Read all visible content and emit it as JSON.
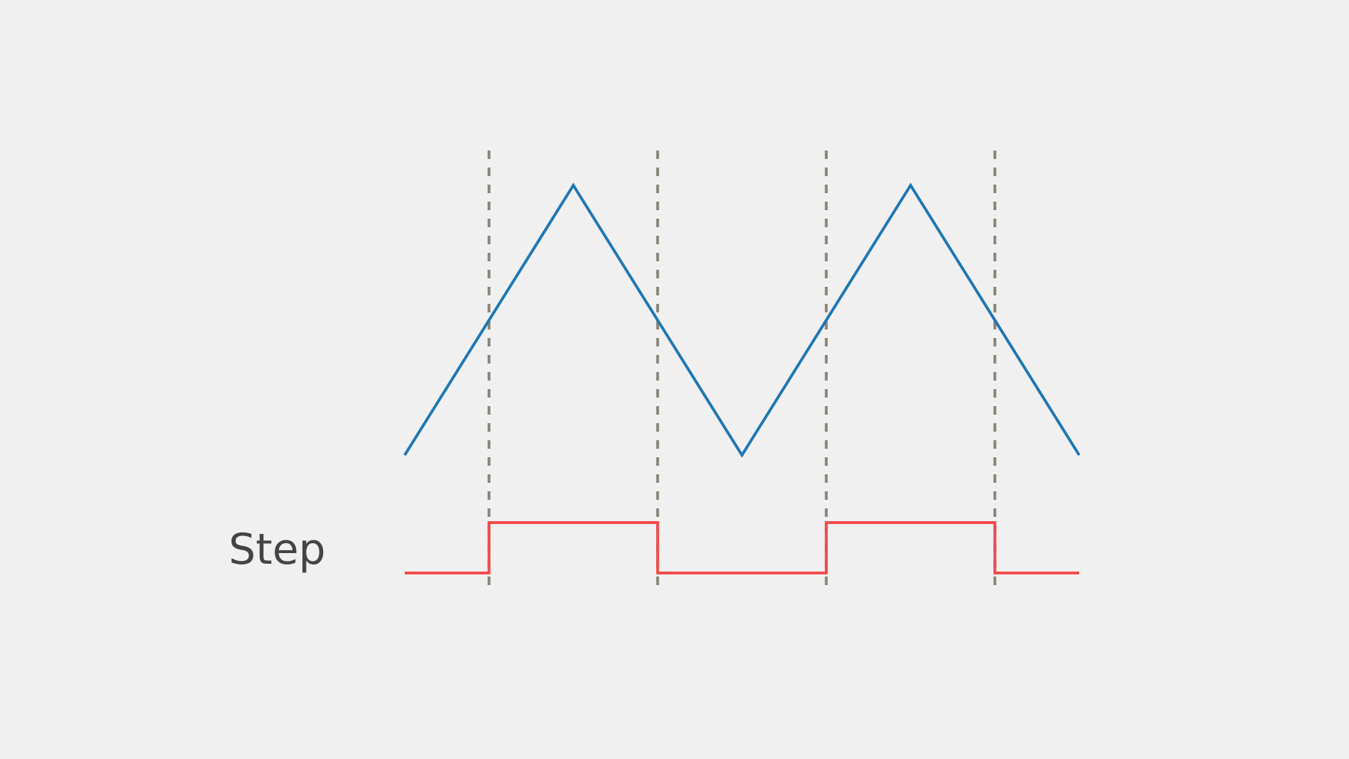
{
  "diagram": {
    "step_label": "Step",
    "colors": {
      "background": "#f0f0f0",
      "triangle_wave": "#1f77b4",
      "step_signal": "#ef4b4b",
      "threshold_lines": "#8b8579",
      "label_text": "#444444"
    },
    "triangle_wave": {
      "points": [
        {
          "t": 0,
          "level": 0
        },
        {
          "t": 1,
          "level": 1
        },
        {
          "t": 2,
          "level": 0
        },
        {
          "t": 3,
          "level": 1
        },
        {
          "t": 4,
          "level": 0
        }
      ]
    },
    "threshold_level": 0.5,
    "step_signal": {
      "low": 0,
      "high": 1,
      "transitions": [
        0.5,
        1.5,
        2.5,
        3.5
      ]
    }
  }
}
